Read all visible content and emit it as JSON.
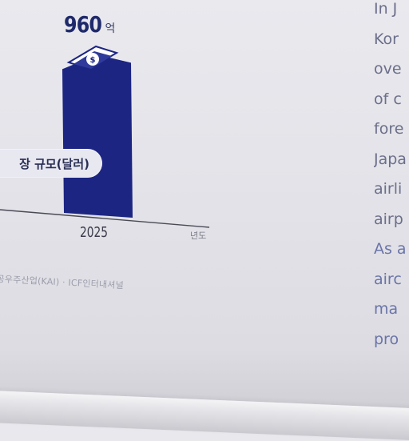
{
  "chart_data": {
    "type": "bar",
    "categories": [
      "2025"
    ],
    "values": [
      960
    ],
    "value_labels": [
      "960"
    ],
    "value_unit": "억",
    "legend_label": "장 규모(달러)",
    "xlabel": "년도",
    "source": "공우주산업(KAI) · ICF인터내셔널",
    "bar_color": "#1c2582",
    "ylim": [
      0,
      1000
    ]
  },
  "article": {
    "lines": [
      {
        "text": "In J",
        "color": "#6b6f8a"
      },
      {
        "text": "Kor",
        "color": "#6b6f8a"
      },
      {
        "text": "ove",
        "color": "#6b6f8a"
      },
      {
        "text": "of c",
        "color": "#6b6f8a"
      },
      {
        "text": "fore",
        "color": "#6b6f8a"
      },
      {
        "text": "Japa",
        "color": "#6b6f8a"
      },
      {
        "text": "airli",
        "color": "#6b6f8a"
      },
      {
        "text": "airp",
        "color": "#6b6f8a"
      },
      {
        "text": "As a",
        "color": "#6a74a8"
      },
      {
        "text": "airc",
        "color": "#6a74a8"
      },
      {
        "text": "ma",
        "color": "#6a74a8"
      },
      {
        "text": "pro",
        "color": "#6a74a8"
      }
    ]
  },
  "icons": {
    "money": "money-icon"
  }
}
